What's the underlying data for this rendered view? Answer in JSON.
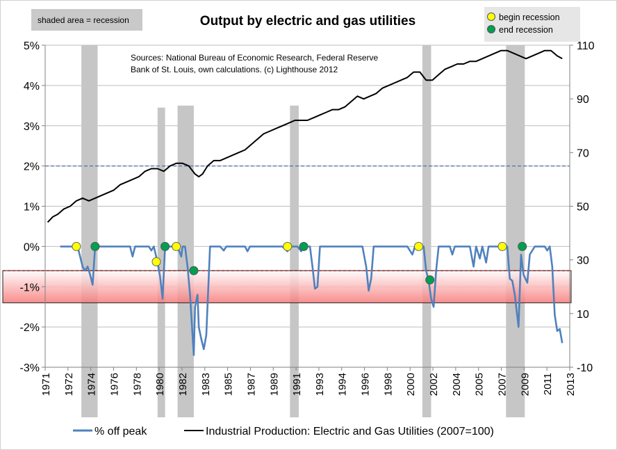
{
  "chart_data": {
    "type": "line",
    "title": "Output by electric and gas utilities",
    "shading_note": "shaded area = recession",
    "sources_line1": "Sources: National Bureau of Economic Research, Federal Reserve",
    "sources_line2": "Bank of St. Louis, own calculations. (c) Lighthouse  2012",
    "marker_legend": [
      {
        "label": "begin recession",
        "color": "#ffff00"
      },
      {
        "label": "end recession",
        "color": "#00a050"
      }
    ],
    "left_axis": {
      "ticks": [
        "5%",
        "4%",
        "3%",
        "2%",
        "1%",
        "0%",
        "-1%",
        "-2%",
        "-3%"
      ],
      "min": -3,
      "max": 5
    },
    "right_axis": {
      "ticks": [
        "110",
        "90",
        "70",
        "50",
        "30",
        "10",
        "-10"
      ],
      "min": -10,
      "max": 110
    },
    "x_axis": {
      "min": 1971,
      "max": 2013,
      "tick_labels": [
        "1971",
        "1972",
        "1974",
        "1976",
        "1978",
        "1980",
        "1982",
        "1983",
        "1985",
        "1987",
        "1989",
        "1991",
        "1993",
        "1994",
        "1996",
        "1998",
        "2000",
        "2002",
        "2004",
        "2005",
        "2007",
        "2009",
        "2011",
        "2013"
      ]
    },
    "reference_line_pct": 2,
    "threshold_line_pct": -0.6,
    "warning_band_pct": [
      -0.6,
      -1.4
    ],
    "recessions": [
      {
        "start": 1973.9,
        "end": 1975.2,
        "top_pct": 5
      },
      {
        "start": 1980.0,
        "end": 1980.6,
        "top_pct": 3.45
      },
      {
        "start": 1981.6,
        "end": 1982.9,
        "top_pct": 3.5
      },
      {
        "start": 1990.6,
        "end": 1991.3,
        "top_pct": 3.5
      },
      {
        "start": 2001.2,
        "end": 2001.9,
        "top_pct": 5
      },
      {
        "start": 2007.9,
        "end": 2009.4,
        "top_pct": 5
      }
    ],
    "begin_markers": [
      [
        1973.5,
        0
      ],
      [
        1979.9,
        -0.38
      ],
      [
        1981.5,
        0
      ],
      [
        1990.4,
        0
      ],
      [
        2000.9,
        0
      ],
      [
        2007.6,
        0
      ]
    ],
    "end_markers": [
      [
        1975.0,
        0
      ],
      [
        1980.6,
        0
      ],
      [
        1982.9,
        -0.6
      ],
      [
        1991.7,
        0
      ],
      [
        2001.8,
        -0.83
      ],
      [
        2009.2,
        0
      ]
    ],
    "series": [
      {
        "name": "% off peak",
        "color": "#4f81bd",
        "axis": "left",
        "points": [
          [
            1972.2,
            0
          ],
          [
            1973.2,
            0
          ],
          [
            1973.6,
            0
          ],
          [
            1974.0,
            -0.5
          ],
          [
            1974.2,
            -0.6
          ],
          [
            1974.4,
            -0.5
          ],
          [
            1974.6,
            -0.7
          ],
          [
            1974.8,
            -0.95
          ],
          [
            1975.0,
            0
          ],
          [
            1977.8,
            0
          ],
          [
            1978.0,
            -0.25
          ],
          [
            1978.2,
            0
          ],
          [
            1979.3,
            0
          ],
          [
            1979.5,
            -0.1
          ],
          [
            1979.7,
            0
          ],
          [
            1980.0,
            -0.4
          ],
          [
            1980.2,
            -0.75
          ],
          [
            1980.4,
            -1.3
          ],
          [
            1980.6,
            0
          ],
          [
            1981.6,
            0
          ],
          [
            1981.9,
            -0.25
          ],
          [
            1982.0,
            0
          ],
          [
            1982.2,
            0
          ],
          [
            1982.4,
            -0.5
          ],
          [
            1982.6,
            -1.2
          ],
          [
            1982.8,
            -2.2
          ],
          [
            1982.9,
            -2.7
          ],
          [
            1983.0,
            -1.5
          ],
          [
            1983.2,
            -1.2
          ],
          [
            1983.3,
            -2.0
          ],
          [
            1983.5,
            -2.3
          ],
          [
            1983.7,
            -2.55
          ],
          [
            1983.9,
            -2.2
          ],
          [
            1984.2,
            0
          ],
          [
            1985.0,
            0
          ],
          [
            1985.3,
            -0.1
          ],
          [
            1985.5,
            0
          ],
          [
            1987.0,
            0
          ],
          [
            1987.2,
            -0.12
          ],
          [
            1987.4,
            0
          ],
          [
            1990.0,
            0
          ],
          [
            1990.4,
            -0.12
          ],
          [
            1990.6,
            0
          ],
          [
            1991.2,
            0
          ],
          [
            1991.5,
            -0.12
          ],
          [
            1991.7,
            0
          ],
          [
            1992.2,
            0
          ],
          [
            1992.4,
            -0.5
          ],
          [
            1992.6,
            -1.05
          ],
          [
            1992.8,
            -1.0
          ],
          [
            1993.0,
            0
          ],
          [
            1996.4,
            0
          ],
          [
            1996.7,
            -0.5
          ],
          [
            1996.9,
            -1.1
          ],
          [
            1997.1,
            -0.8
          ],
          [
            1997.3,
            0
          ],
          [
            2000.0,
            0
          ],
          [
            2000.4,
            -0.2
          ],
          [
            2000.6,
            0
          ],
          [
            2001.3,
            0
          ],
          [
            2001.5,
            -0.6
          ],
          [
            2001.7,
            -0.85
          ],
          [
            2001.9,
            -1.3
          ],
          [
            2002.1,
            -1.5
          ],
          [
            2002.3,
            -0.6
          ],
          [
            2002.5,
            0
          ],
          [
            2003.4,
            0
          ],
          [
            2003.6,
            -0.2
          ],
          [
            2003.8,
            0
          ],
          [
            2005.0,
            0
          ],
          [
            2005.3,
            -0.5
          ],
          [
            2005.5,
            0
          ],
          [
            2005.8,
            -0.3
          ],
          [
            2006.0,
            0
          ],
          [
            2006.3,
            -0.4
          ],
          [
            2006.5,
            0
          ],
          [
            2008.0,
            0
          ],
          [
            2008.2,
            -0.8
          ],
          [
            2008.4,
            -0.85
          ],
          [
            2008.6,
            -1.2
          ],
          [
            2008.9,
            -2.0
          ],
          [
            2009.1,
            -0.2
          ],
          [
            2009.3,
            -0.7
          ],
          [
            2009.6,
            -0.9
          ],
          [
            2009.8,
            -0.2
          ],
          [
            2010.2,
            0
          ],
          [
            2011.0,
            0
          ],
          [
            2011.2,
            -0.1
          ],
          [
            2011.4,
            0
          ],
          [
            2011.6,
            -0.5
          ],
          [
            2011.8,
            -1.7
          ],
          [
            2012.0,
            -2.1
          ],
          [
            2012.2,
            -2.05
          ],
          [
            2012.4,
            -2.4
          ]
        ]
      },
      {
        "name": "Industrial Production: Electric and Gas Utilities (2007=100)",
        "color": "#000000",
        "axis": "right",
        "points": [
          [
            1971.2,
            44
          ],
          [
            1971.6,
            46
          ],
          [
            1972.0,
            47
          ],
          [
            1972.5,
            49
          ],
          [
            1973.0,
            50
          ],
          [
            1973.5,
            52
          ],
          [
            1974.0,
            53
          ],
          [
            1974.5,
            52
          ],
          [
            1975.0,
            53
          ],
          [
            1975.5,
            54
          ],
          [
            1976.0,
            55
          ],
          [
            1976.5,
            56
          ],
          [
            1977.0,
            58
          ],
          [
            1977.5,
            59
          ],
          [
            1978.0,
            60
          ],
          [
            1978.5,
            61
          ],
          [
            1979.0,
            63
          ],
          [
            1979.5,
            64
          ],
          [
            1980.0,
            64
          ],
          [
            1980.5,
            63
          ],
          [
            1981.0,
            65
          ],
          [
            1981.5,
            66
          ],
          [
            1982.0,
            66
          ],
          [
            1982.5,
            65
          ],
          [
            1983.0,
            62
          ],
          [
            1983.3,
            61
          ],
          [
            1983.6,
            62
          ],
          [
            1984.0,
            65
          ],
          [
            1984.5,
            67
          ],
          [
            1985.0,
            67
          ],
          [
            1985.5,
            68
          ],
          [
            1986.0,
            69
          ],
          [
            1986.5,
            70
          ],
          [
            1987.0,
            71
          ],
          [
            1987.5,
            73
          ],
          [
            1988.0,
            75
          ],
          [
            1988.5,
            77
          ],
          [
            1989.0,
            78
          ],
          [
            1989.5,
            79
          ],
          [
            1990.0,
            80
          ],
          [
            1990.5,
            81
          ],
          [
            1991.0,
            82
          ],
          [
            1991.5,
            82
          ],
          [
            1992.0,
            82
          ],
          [
            1992.5,
            83
          ],
          [
            1993.0,
            84
          ],
          [
            1993.5,
            85
          ],
          [
            1994.0,
            86
          ],
          [
            1994.5,
            86
          ],
          [
            1995.0,
            87
          ],
          [
            1995.5,
            89
          ],
          [
            1996.0,
            91
          ],
          [
            1996.5,
            90
          ],
          [
            1997.0,
            91
          ],
          [
            1997.5,
            92
          ],
          [
            1998.0,
            94
          ],
          [
            1998.5,
            95
          ],
          [
            1999.0,
            96
          ],
          [
            1999.5,
            97
          ],
          [
            2000.0,
            98
          ],
          [
            2000.5,
            100
          ],
          [
            2001.0,
            100
          ],
          [
            2001.5,
            97
          ],
          [
            2002.0,
            97
          ],
          [
            2002.5,
            99
          ],
          [
            2003.0,
            101
          ],
          [
            2003.5,
            102
          ],
          [
            2004.0,
            103
          ],
          [
            2004.5,
            103
          ],
          [
            2005.0,
            104
          ],
          [
            2005.5,
            104
          ],
          [
            2006.0,
            105
          ],
          [
            2006.5,
            106
          ],
          [
            2007.0,
            107
          ],
          [
            2007.5,
            108
          ],
          [
            2008.0,
            108
          ],
          [
            2008.5,
            107
          ],
          [
            2009.0,
            106
          ],
          [
            2009.5,
            105
          ],
          [
            2010.0,
            106
          ],
          [
            2010.5,
            107
          ],
          [
            2011.0,
            108
          ],
          [
            2011.5,
            108
          ],
          [
            2012.0,
            106
          ],
          [
            2012.4,
            105
          ]
        ]
      }
    ]
  }
}
